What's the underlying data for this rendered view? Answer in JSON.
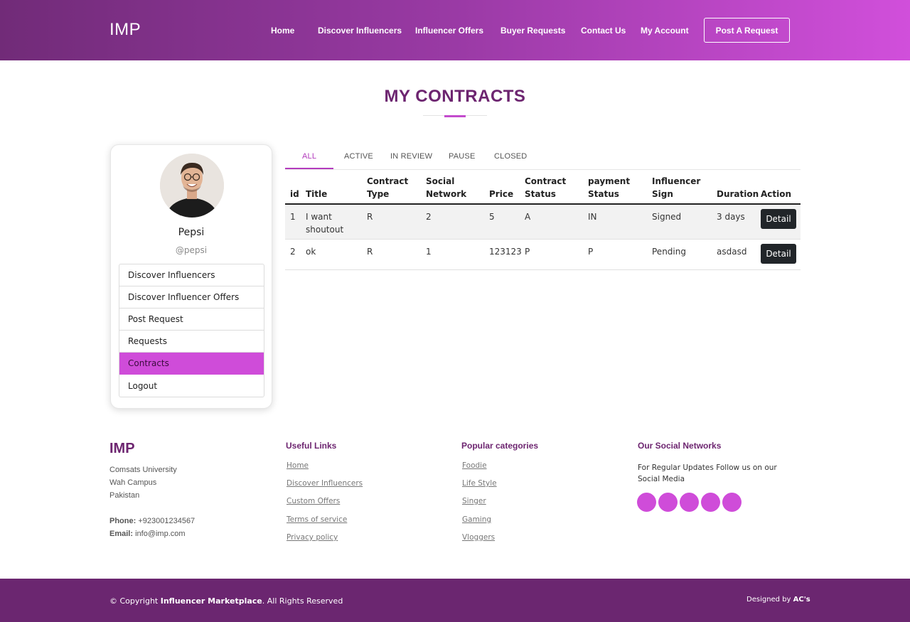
{
  "header": {
    "logo": "IMP",
    "nav": [
      "Home",
      "Discover Influencers",
      "Influencer Offers",
      "Buyer Requests",
      "Contact Us",
      "My Account"
    ],
    "post_button": "Post A Request"
  },
  "page_title": "MY CONTRACTS",
  "profile": {
    "name": "Pepsi",
    "handle": "@pepsi",
    "menu": [
      "Discover Influencers",
      "Discover Influencer Offers",
      "Post Request",
      "Requests",
      "Contracts",
      "Logout"
    ],
    "active_menu": "Contracts"
  },
  "tabs": [
    "ALL",
    "ACTIVE",
    "IN REVIEW",
    "PAUSE",
    "CLOSED"
  ],
  "active_tab": "ALL",
  "table": {
    "headers": {
      "id": "id",
      "title": "Title",
      "contract_type": "Contract Type",
      "social_network": "Social Network",
      "price": "Price",
      "contract_status": "Contract Status",
      "payment_status": "payment Status",
      "influencer_sign": "Influencer Sign",
      "duration": "Duration",
      "action": "Action"
    },
    "rows": [
      {
        "id": "1",
        "title": "I want shoutout",
        "contract_type": "R",
        "social_network": "2",
        "price": "5",
        "contract_status": "A",
        "payment_status": "IN",
        "influencer_sign": "Signed",
        "duration": "3 days",
        "action": "Detail"
      },
      {
        "id": "2",
        "title": "ok",
        "contract_type": "R",
        "social_network": "1",
        "price": "123123",
        "contract_status": "P",
        "payment_status": "P",
        "influencer_sign": "Pending",
        "duration": "asdasd",
        "action": "Detail"
      }
    ]
  },
  "footer": {
    "brand": "IMP",
    "address": [
      "Comsats University",
      "Wah Campus",
      "Pakistan"
    ],
    "phone_label": "Phone:",
    "phone": "+923001234567",
    "email_label": "Email:",
    "email": "info@imp.com",
    "useful_links_title": "Useful Links",
    "useful_links": [
      "Home",
      "Discover Influencers",
      "Custom Offers",
      "Terms of service",
      "Privacy policy"
    ],
    "categories_title": "Popular categories",
    "categories": [
      "Foodie",
      "Life Style",
      "Singer",
      "Gaming",
      "Vloggers"
    ],
    "social_title": "Our Social Networks",
    "social_text": "For Regular Updates Follow us on our Social Media",
    "social_icon_count": 5,
    "copyright_prefix": "© Copyright",
    "copyright_brand": "Influencer Marketplace",
    "copyright_suffix": ". All Rights Reserved",
    "designed_prefix": "Designed by",
    "designed_by": "AC's"
  },
  "colors": {
    "header_gradient_start": "#712b78",
    "header_gradient_end": "#d14fdb",
    "accent": "#cf4cd9",
    "title": "#6d2570",
    "bottom_bar": "#6b2670"
  }
}
